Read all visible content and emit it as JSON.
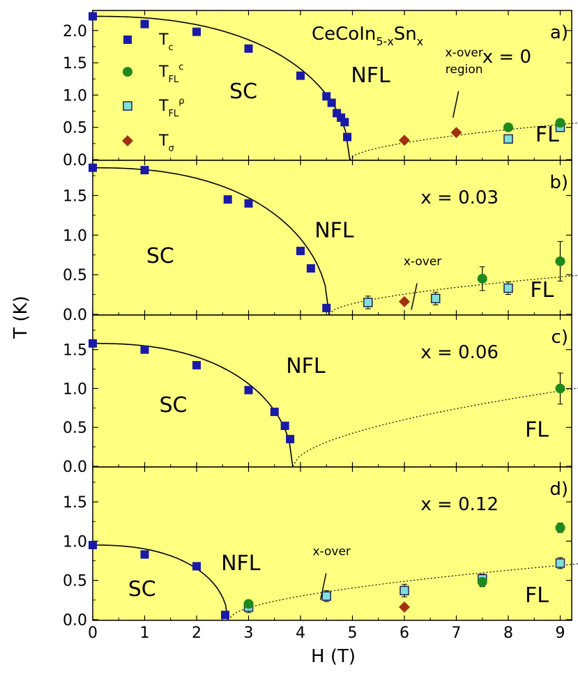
{
  "colors": {
    "panel_bg": "#ffff80",
    "tc": "#1a1aa8",
    "tfl_c": "#1e8a1e",
    "tfl_rho": "#7fe0d8",
    "tsigma": "#a03010",
    "line": "#000000"
  },
  "chart_data": {
    "type": "scatter",
    "xlabel": "H (T)",
    "ylabel": "T (K)",
    "xlim": [
      0,
      9.5
    ],
    "x_ticks": [
      "0",
      "1",
      "2",
      "3",
      "4",
      "5",
      "6",
      "7",
      "8",
      "9"
    ],
    "grid": false,
    "compound": {
      "base": "CeCoIn",
      "sub1": "5-x",
      "mid": "Sn",
      "sub2": "x"
    },
    "legend": {
      "placement": "top-left of panel a",
      "entries": [
        {
          "key": "tc",
          "marker": "square",
          "base": "T",
          "sub": "c",
          "sup": ""
        },
        {
          "key": "tfl_c",
          "marker": "circle",
          "base": "T",
          "sub": "FL",
          "sup": "c"
        },
        {
          "key": "tfl_rho",
          "marker": "open-square",
          "base": "T",
          "sub": "FL",
          "sup": "ρ"
        },
        {
          "key": "tsigma",
          "marker": "diamond",
          "base": "T",
          "sub": "σ",
          "sup": ""
        }
      ]
    },
    "panels": [
      {
        "letter": "a)",
        "composition": "x = 0",
        "ylim": [
          0,
          2.3
        ],
        "y_ticks": [
          "0.0",
          "0.5",
          "1.0",
          "1.5",
          "2.0"
        ],
        "y_tick_values": [
          0,
          0.5,
          1.0,
          1.5,
          2.0
        ],
        "labels": [
          {
            "text": "SC",
            "x": 2.9,
            "y": 0.95
          },
          {
            "text": "NFL",
            "x": 5.35,
            "y": 1.2
          },
          {
            "text": "FL",
            "x": 8.75,
            "y": 0.28
          }
        ],
        "crossover": {
          "lines": [
            "x-over",
            "region"
          ],
          "x": 7.15,
          "y": 1.6
        },
        "tc": [
          [
            0,
            2.22
          ],
          [
            1,
            2.1
          ],
          [
            2,
            1.98
          ],
          [
            3,
            1.72
          ],
          [
            4,
            1.3
          ],
          [
            4.5,
            0.98
          ],
          [
            4.6,
            0.88
          ],
          [
            4.7,
            0.72
          ],
          [
            4.78,
            0.65
          ],
          [
            4.85,
            0.58
          ],
          [
            4.9,
            0.35
          ]
        ],
        "tfl_c": [
          [
            8,
            0.5
          ],
          [
            9,
            0.57
          ]
        ],
        "tfl_rho": [
          [
            8,
            0.32
          ],
          [
            9,
            0.5
          ]
        ],
        "tsigma": [
          [
            6,
            0.3
          ],
          [
            7,
            0.42
          ]
        ],
        "tfl_c_err": [],
        "tfl_rho_err": []
      },
      {
        "letter": "b)",
        "composition": "x = 0.03",
        "ylim": [
          0,
          1.9
        ],
        "y_ticks": [
          "0.0",
          "0.5",
          "1.0",
          "1.5"
        ],
        "y_tick_values": [
          0,
          0.5,
          1.0,
          1.5
        ],
        "labels": [
          {
            "text": "SC",
            "x": 1.3,
            "y": 0.65
          },
          {
            "text": "NFL",
            "x": 4.65,
            "y": 0.97
          },
          {
            "text": "FL",
            "x": 8.65,
            "y": 0.22
          }
        ],
        "crossover": {
          "lines": [
            "x-over"
          ],
          "x": 6.35,
          "y": 0.62
        },
        "tc": [
          [
            0,
            1.85
          ],
          [
            1,
            1.82
          ],
          [
            2.6,
            1.45
          ],
          [
            3,
            1.4
          ],
          [
            4,
            0.8
          ],
          [
            4.2,
            0.58
          ],
          [
            4.5,
            0.08
          ]
        ],
        "tfl_c": [
          [
            7.5,
            0.45
          ],
          [
            9,
            0.67
          ]
        ],
        "tfl_rho": [
          [
            5.3,
            0.15
          ],
          [
            6.6,
            0.2
          ],
          [
            8,
            0.33
          ]
        ],
        "tsigma": [
          [
            6,
            0.16
          ]
        ],
        "tfl_c_err": [
          0.15,
          0.25
        ],
        "tfl_rho_err": [
          0.08,
          0.08,
          0.08
        ]
      },
      {
        "letter": "c)",
        "composition": "x = 0.06",
        "ylim": [
          0,
          1.9
        ],
        "y_ticks": [
          "0.0",
          "0.5",
          "1.0",
          "1.5"
        ],
        "y_tick_values": [
          0,
          0.5,
          1.0,
          1.5
        ],
        "labels": [
          {
            "text": "SC",
            "x": 1.55,
            "y": 0.7
          },
          {
            "text": "NFL",
            "x": 4.1,
            "y": 1.2
          },
          {
            "text": "FL",
            "x": 8.55,
            "y": 0.38
          }
        ],
        "crossover": null,
        "tc": [
          [
            0,
            1.58
          ],
          [
            1,
            1.5
          ],
          [
            2,
            1.3
          ],
          [
            3,
            0.98
          ],
          [
            3.5,
            0.7
          ],
          [
            3.7,
            0.52
          ],
          [
            3.8,
            0.35
          ]
        ],
        "tfl_c": [
          [
            9,
            1.0
          ]
        ],
        "tfl_rho": [],
        "tsigma": [],
        "tfl_c_err": [
          0.2
        ],
        "tfl_rho_err": []
      },
      {
        "letter": "d)",
        "composition": "x = 0.12",
        "ylim": [
          0,
          1.9
        ],
        "y_ticks": [
          "0.0",
          "0.5",
          "1.0",
          "1.5"
        ],
        "y_tick_values": [
          0,
          0.5,
          1.0,
          1.5
        ],
        "labels": [
          {
            "text": "SC",
            "x": 0.95,
            "y": 0.3
          },
          {
            "text": "NFL",
            "x": 2.85,
            "y": 0.63
          },
          {
            "text": "FL",
            "x": 8.55,
            "y": 0.22
          }
        ],
        "crossover": {
          "lines": [
            "x-over"
          ],
          "x": 4.6,
          "y": 0.82
        },
        "tc": [
          [
            0,
            0.95
          ],
          [
            1,
            0.83
          ],
          [
            2,
            0.68
          ],
          [
            2.55,
            0.06
          ]
        ],
        "tfl_c": [
          [
            3,
            0.2
          ],
          [
            7.5,
            0.48
          ],
          [
            9,
            1.17
          ]
        ],
        "tfl_rho": [
          [
            3,
            0.16
          ],
          [
            4.5,
            0.3
          ],
          [
            6,
            0.37
          ],
          [
            7.5,
            0.52
          ],
          [
            9,
            0.72
          ]
        ],
        "tsigma": [
          [
            6,
            0.16
          ]
        ],
        "tfl_c_err": [
          0.05,
          0.06,
          0.06
        ],
        "tfl_rho_err": [
          0.07,
          0.07,
          0.08,
          0.06,
          0.07
        ]
      }
    ]
  }
}
